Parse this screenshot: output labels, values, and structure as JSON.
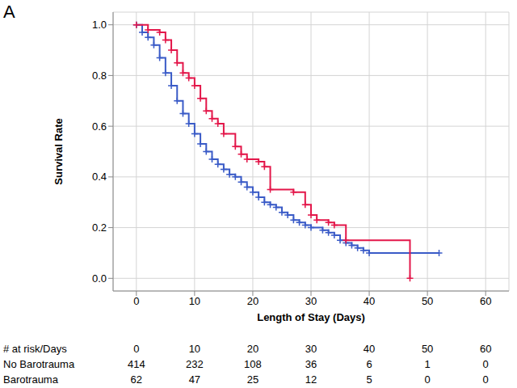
{
  "chart_data": {
    "type": "line",
    "title": "A",
    "x_label": "Length of Stay (Days)",
    "y_label": "Survival Rate",
    "xlim": [
      -4,
      64
    ],
    "xticks": [
      0,
      10,
      20,
      30,
      40,
      50,
      60
    ],
    "ylim": [
      -0.05,
      1.05
    ],
    "yticks": [
      {
        "value": 0,
        "label": "0.0"
      },
      {
        "value": 0.2,
        "label": "0.2"
      },
      {
        "value": 0.4,
        "label": "0.4"
      },
      {
        "value": 0.6,
        "label": "0.6"
      },
      {
        "value": 0.8,
        "label": "0.8"
      },
      {
        "value": 1,
        "label": "1.0"
      }
    ],
    "grid": true,
    "line_style": "step",
    "marker": "plus",
    "series": [
      {
        "name": "No Barotrauma",
        "color": "#3a5bc7",
        "x": [
          0,
          1,
          2,
          3,
          4,
          5,
          6,
          7,
          8,
          9,
          10,
          11,
          12,
          13,
          14,
          15,
          16,
          17,
          18,
          19,
          20,
          21,
          22,
          23,
          24,
          25,
          26,
          27,
          28,
          29,
          30,
          32,
          33,
          34,
          35,
          36,
          37,
          38,
          39,
          40,
          52
        ],
        "values": [
          1.0,
          0.97,
          0.95,
          0.92,
          0.87,
          0.81,
          0.76,
          0.7,
          0.65,
          0.61,
          0.57,
          0.53,
          0.5,
          0.47,
          0.45,
          0.43,
          0.41,
          0.4,
          0.38,
          0.36,
          0.34,
          0.32,
          0.3,
          0.29,
          0.28,
          0.26,
          0.25,
          0.23,
          0.22,
          0.21,
          0.2,
          0.19,
          0.18,
          0.17,
          0.15,
          0.14,
          0.13,
          0.12,
          0.11,
          0.1,
          0.1
        ]
      },
      {
        "name": "Barotrauma",
        "color": "#e3174a",
        "x": [
          0,
          2,
          4,
          5,
          6,
          7,
          8,
          9,
          10,
          11,
          12,
          13,
          14,
          15,
          17,
          18,
          19,
          21,
          22,
          23,
          27,
          29,
          30,
          31,
          33,
          34,
          36,
          47
        ],
        "values": [
          1.0,
          0.98,
          0.97,
          0.94,
          0.9,
          0.85,
          0.81,
          0.79,
          0.76,
          0.71,
          0.66,
          0.63,
          0.61,
          0.57,
          0.52,
          0.49,
          0.47,
          0.46,
          0.44,
          0.35,
          0.34,
          0.29,
          0.25,
          0.23,
          0.22,
          0.21,
          0.15,
          0.0
        ]
      }
    ],
    "at_risk": {
      "header": "# at risk/Days",
      "days": [
        0,
        10,
        20,
        30,
        40,
        50,
        60
      ],
      "rows": [
        {
          "name": "No Barotrauma",
          "values": [
            414,
            232,
            108,
            36,
            6,
            1,
            0
          ]
        },
        {
          "name": "Barotrauma",
          "values": [
            62,
            47,
            25,
            12,
            5,
            0,
            0
          ]
        }
      ]
    }
  }
}
